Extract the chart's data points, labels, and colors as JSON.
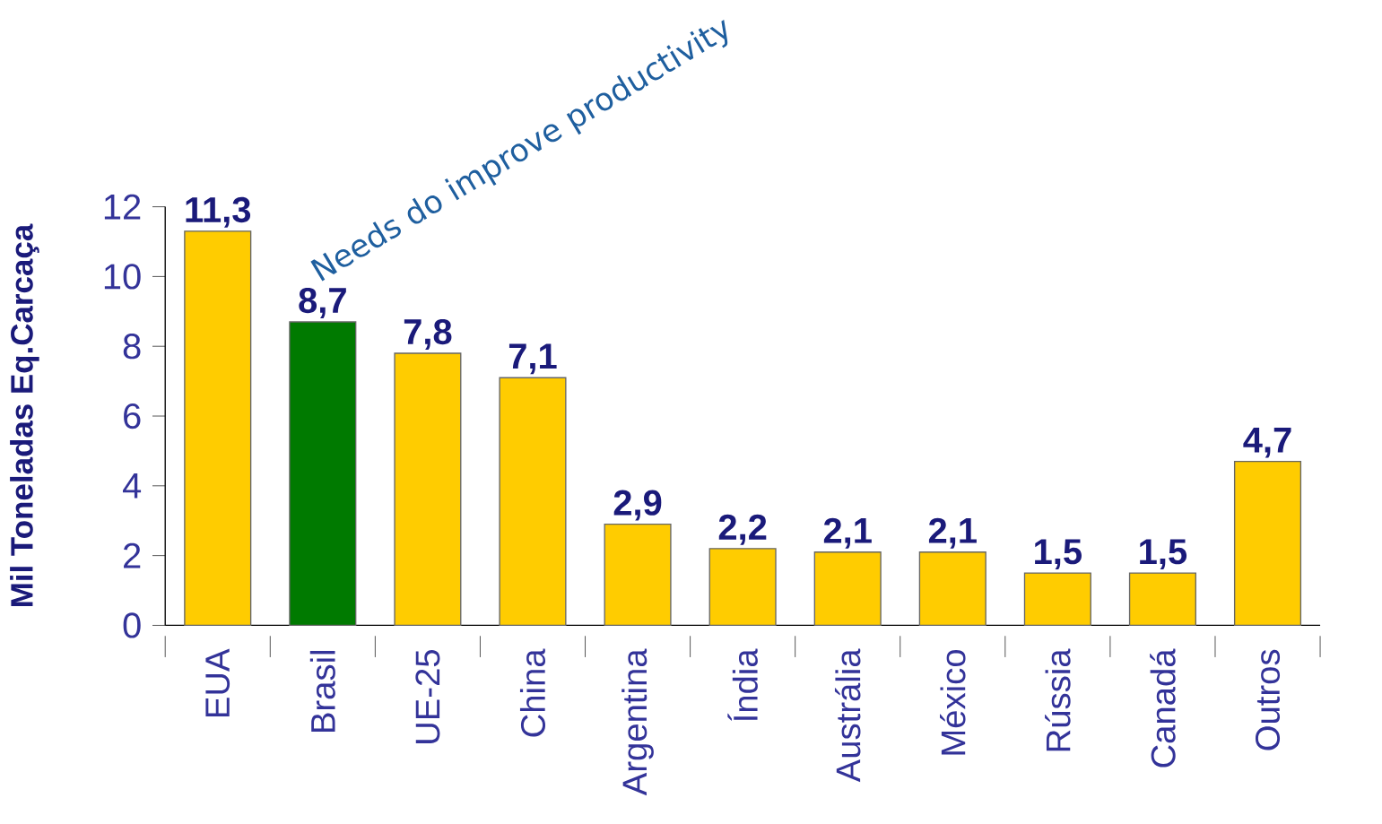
{
  "chart_data": {
    "type": "bar",
    "ylabel": "Mil Toneladas Eq.Carcaça",
    "categories": [
      "EUA",
      "Brasil",
      "UE-25",
      "China",
      "Argentina",
      "Índia",
      "Austrália",
      "México",
      "Rússia",
      "Canadá",
      "Outros"
    ],
    "values": [
      11.3,
      8.7,
      7.8,
      7.1,
      2.9,
      2.2,
      2.1,
      2.1,
      1.5,
      1.5,
      4.7
    ],
    "colors": [
      "#ffcc00",
      "#007a00",
      "#ffcc00",
      "#ffcc00",
      "#ffcc00",
      "#ffcc00",
      "#ffcc00",
      "#ffcc00",
      "#ffcc00",
      "#ffcc00",
      "#ffcc00"
    ],
    "value_labels": [
      "11,3",
      "8,7",
      "7,8",
      "7,1",
      "2,9",
      "2,2",
      "2,1",
      "2,1",
      "1,5",
      "1,5",
      "4,7"
    ],
    "ylim": [
      0,
      12
    ],
    "yticks": [
      0,
      2,
      4,
      6,
      8,
      10,
      12
    ],
    "annotations": [
      "Needs do improve productivity"
    ]
  }
}
